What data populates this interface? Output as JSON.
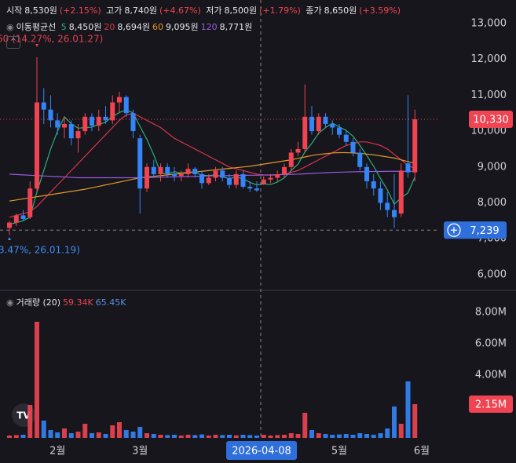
{
  "chart_data": [
    {
      "type": "candlestick",
      "header": [
        {
          "label": "시작",
          "value": "8,530원",
          "change": "(+2.15%)"
        },
        {
          "label": "고가",
          "value": "8,740원",
          "change": "(+4.67%)"
        },
        {
          "label": "저가",
          "value": "8,500원",
          "change": "(+1.79%)"
        },
        {
          "label": "종가",
          "value": "8,650원",
          "change": "(+3.59%)"
        }
      ],
      "ma_title": "이동평균선",
      "high_note": "60 (14.27%, 26.01.27)",
      "low_note": "3.47%, 26.01.19)",
      "categories": [
        null,
        null,
        null,
        null,
        null,
        null,
        null,
        "2월",
        null,
        null,
        null,
        null,
        null,
        null,
        null,
        null,
        null,
        null,
        null,
        "3월",
        null,
        null,
        null,
        null,
        null,
        null,
        null,
        null,
        null,
        null,
        null,
        null,
        null,
        null,
        null,
        null,
        "4월",
        null,
        null,
        null,
        null,
        null,
        null,
        null,
        null,
        null,
        null,
        null,
        "5월",
        null,
        null,
        null,
        null,
        null,
        null,
        null,
        null,
        null,
        null,
        null,
        "6월"
      ],
      "open": [
        7300,
        7450,
        7650,
        7600,
        8400,
        10800,
        10600,
        10300,
        10100,
        10200,
        9800,
        10000,
        10400,
        10150,
        10400,
        10300,
        10800,
        10950,
        10500,
        9800,
        8400,
        9000,
        8800,
        9000,
        8800,
        8750,
        8800,
        8950,
        8800,
        8550,
        8700,
        8900,
        8700,
        8500,
        8800,
        8450,
        8400,
        8530,
        8650,
        8700,
        8800,
        9000,
        9400,
        9500,
        10400,
        10000,
        10400,
        10200,
        10100,
        9900,
        9700,
        9400,
        9000,
        8600,
        8400,
        8000,
        7800,
        7700,
        9100,
        8850,
        null
      ],
      "high": [
        7500,
        7700,
        7800,
        8600,
        12060,
        11200,
        11000,
        10500,
        10400,
        10300,
        10200,
        10500,
        10500,
        10600,
        10700,
        11000,
        11100,
        11000,
        10600,
        9900,
        9100,
        9200,
        9100,
        9100,
        9000,
        8900,
        9100,
        9000,
        8900,
        8800,
        9000,
        9000,
        8800,
        8900,
        8900,
        8600,
        8600,
        8740,
        8800,
        8900,
        9100,
        9500,
        9700,
        11300,
        10700,
        10500,
        10500,
        10300,
        10200,
        10000,
        9800,
        9500,
        9100,
        8800,
        8600,
        8300,
        8800,
        9100,
        11000,
        10600,
        null
      ],
      "low": [
        7100,
        7350,
        7500,
        7550,
        8300,
        10200,
        10100,
        9900,
        9800,
        9600,
        9400,
        9900,
        10000,
        10000,
        10200,
        10200,
        10500,
        10400,
        9800,
        7700,
        8300,
        8700,
        8600,
        8700,
        8600,
        8600,
        8700,
        8700,
        8400,
        8500,
        8600,
        8600,
        8400,
        8400,
        8400,
        8300,
        8300,
        8500,
        8550,
        8600,
        8700,
        8900,
        9300,
        9400,
        9900,
        9900,
        10100,
        9900,
        9800,
        9600,
        9300,
        8900,
        8400,
        8200,
        7800,
        7600,
        7300,
        7600,
        8700,
        8600,
        null
      ],
      "close": [
        7450,
        7650,
        7550,
        8400,
        10800,
        10600,
        10300,
        10100,
        10200,
        9800,
        10000,
        10400,
        10150,
        10400,
        10300,
        10800,
        10950,
        10500,
        10000,
        8400,
        9000,
        8800,
        9000,
        8800,
        8750,
        8800,
        8950,
        8800,
        8550,
        8700,
        8900,
        8700,
        8500,
        8800,
        8450,
        8400,
        8350,
        8650,
        8700,
        8800,
        9000,
        9400,
        9500,
        10400,
        10000,
        10400,
        10200,
        10100,
        9900,
        9700,
        9400,
        9000,
        8600,
        8400,
        8000,
        7800,
        7600,
        8900,
        8850,
        10330,
        null
      ],
      "up_color": "#f04452",
      "down_color": "#3485fa",
      "series": [
        {
          "name": "5",
          "color": "#2bb07f",
          "legend_value": "8,450원",
          "values": [
            7400,
            7450,
            7500,
            7600,
            8300,
            8900,
            9500,
            10000,
            10400,
            10200,
            10080,
            10100,
            10110,
            10190,
            10250,
            10410,
            10520,
            10590,
            10510,
            10130,
            9770,
            9340,
            8840,
            8800,
            8870,
            8830,
            8860,
            8860,
            8770,
            8760,
            8780,
            8730,
            8670,
            8720,
            8670,
            8570,
            8500,
            8530,
            8510,
            8580,
            8700,
            8900,
            9080,
            9420,
            9660,
            9940,
            10100,
            10220,
            10120,
            10020,
            9860,
            9600,
            9320,
            9020,
            8680,
            8360,
            7960,
            8140,
            8280,
            8720,
            null
          ]
        },
        {
          "name": "20",
          "color": "#d9344a",
          "legend_value": "8,694원",
          "values": [
            7600,
            7650,
            7700,
            7750,
            7900,
            8100,
            8300,
            8500,
            8700,
            8900,
            9100,
            9300,
            9500,
            9700,
            9900,
            10100,
            10300,
            10450,
            10500,
            10400,
            10300,
            10200,
            10100,
            9950,
            9800,
            9700,
            9600,
            9500,
            9400,
            9300,
            9200,
            9100,
            9000,
            8950,
            8900,
            8850,
            8800,
            8780,
            8770,
            8780,
            8800,
            8850,
            8900,
            9000,
            9100,
            9200,
            9300,
            9400,
            9500,
            9600,
            9650,
            9700,
            9700,
            9650,
            9600,
            9500,
            9350,
            9200,
            9050,
            8950,
            null
          ]
        },
        {
          "name": "60",
          "color": "#e3962a",
          "legend_value": "9,095원",
          "values": [
            8050,
            8080,
            8110,
            8140,
            8170,
            8200,
            8230,
            8260,
            8290,
            8320,
            8350,
            8380,
            8420,
            8460,
            8500,
            8540,
            8580,
            8620,
            8660,
            8700,
            8720,
            8740,
            8760,
            8780,
            8800,
            8820,
            8840,
            8860,
            8880,
            8900,
            8920,
            8940,
            8960,
            8980,
            9000,
            9020,
            9050,
            9080,
            9110,
            9140,
            9170,
            9200,
            9240,
            9280,
            9320,
            9350,
            9370,
            9390,
            9400,
            9400,
            9390,
            9380,
            9360,
            9340,
            9310,
            9280,
            9250,
            9200,
            9150,
            9100,
            null
          ]
        },
        {
          "name": "120",
          "color": "#9a5be0",
          "legend_value": "8,771원",
          "values": [
            8800,
            8790,
            8780,
            8770,
            8760,
            8750,
            8740,
            8730,
            8720,
            8710,
            8700,
            8700,
            8700,
            8700,
            8700,
            8700,
            8700,
            8700,
            8700,
            8700,
            8705,
            8710,
            8715,
            8720,
            8725,
            8730,
            8735,
            8740,
            8745,
            8750,
            8750,
            8755,
            8760,
            8760,
            8765,
            8770,
            8770,
            8775,
            8780,
            8785,
            8790,
            8795,
            8800,
            8810,
            8820,
            8830,
            8840,
            8850,
            8855,
            8860,
            8865,
            8870,
            8870,
            8875,
            8875,
            8880,
            8880,
            8880,
            8880,
            8885,
            null
          ]
        }
      ],
      "ylim": [
        5560,
        13656
      ],
      "yticks": [
        {
          "value": 13000,
          "label": "13,000"
        },
        {
          "value": 12000,
          "label": "12,000"
        },
        {
          "value": 11000,
          "label": "11,000"
        },
        {
          "value": 10000,
          "label": "10,000"
        },
        {
          "value": 9000,
          "label": "9,000"
        },
        {
          "value": 8000,
          "label": "8,000"
        },
        {
          "value": 7000,
          "label": "7,000"
        },
        {
          "value": 6000,
          "label": "6,000"
        }
      ],
      "last_price": {
        "value": 10330,
        "label": "10,330"
      },
      "crosshair": {
        "x_label": "2026-04-08",
        "y": {
          "value": 7239,
          "label": "7,239"
        }
      }
    },
    {
      "type": "bar",
      "title": "거래량 (20)",
      "legend_values": [
        "59.34K",
        "65.45K"
      ],
      "values": [
        150000,
        180000,
        200000,
        2100000,
        7400000,
        1100000,
        500000,
        350000,
        600000,
        300000,
        400000,
        900000,
        300000,
        350000,
        250000,
        800000,
        1000000,
        500000,
        400000,
        700000,
        300000,
        250000,
        200000,
        180000,
        200000,
        150000,
        200000,
        180000,
        220000,
        150000,
        200000,
        180000,
        200000,
        160000,
        200000,
        180000,
        150000,
        200000,
        150000,
        180000,
        200000,
        300000,
        250000,
        1600000,
        500000,
        300000,
        250000,
        200000,
        220000,
        250000,
        200000,
        300000,
        250000,
        200000,
        300000,
        600000,
        2000000,
        900000,
        3600000,
        2150000,
        null
      ],
      "ylim": [
        0,
        9150000
      ],
      "yticks": [
        {
          "value": 8000000,
          "label": "8.00M"
        },
        {
          "value": 6000000,
          "label": "6.00M"
        },
        {
          "value": 4000000,
          "label": "4.00M"
        }
      ],
      "last_value": {
        "value": 2150000,
        "label": "2.15M"
      }
    }
  ]
}
